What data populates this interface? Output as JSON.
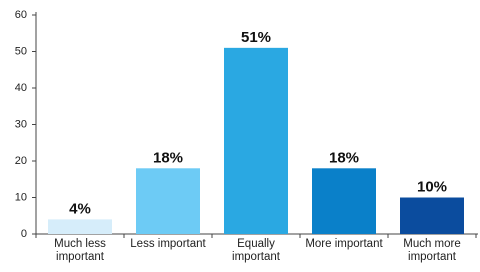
{
  "chart_data": {
    "type": "bar",
    "categories": [
      "Much less important",
      "Less important",
      "Equally important",
      "More important",
      "Much more important"
    ],
    "values": [
      4,
      18,
      51,
      18,
      10
    ],
    "value_labels": [
      "4%",
      "18%",
      "51%",
      "18%",
      "10%"
    ],
    "colors": [
      "#d6edfa",
      "#6dcbf5",
      "#2aa8e2",
      "#0a80c9",
      "#0b4c9e"
    ],
    "ylim": [
      0,
      60
    ],
    "yticks": [
      0,
      10,
      20,
      30,
      40,
      50,
      60
    ],
    "grid": false
  }
}
